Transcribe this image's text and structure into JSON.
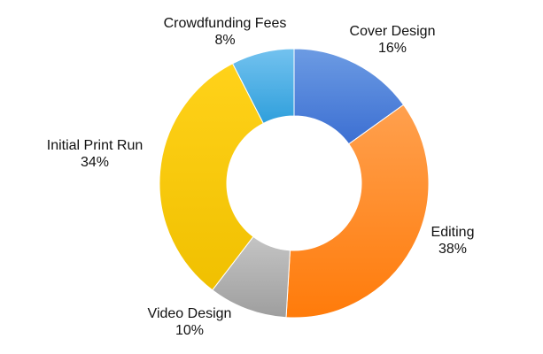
{
  "chart_data": {
    "type": "pie",
    "variant": "donut",
    "start_angle_deg": 0,
    "direction": "clockwise",
    "legend": "none",
    "slices": [
      {
        "label": "Cover Design",
        "value": 16,
        "value_label": "16%",
        "color_light": "#6c9be3",
        "color_dark": "#3c6fd2"
      },
      {
        "label": "Editing",
        "value": 38,
        "value_label": "38%",
        "color_light": "#ffa04e",
        "color_dark": "#ff7b0a"
      },
      {
        "label": "Video Design",
        "value": 10,
        "value_label": "10%",
        "color_light": "#c4c4c4",
        "color_dark": "#9e9e9e"
      },
      {
        "label": "Initial Print Run",
        "value": 34,
        "value_label": "34%",
        "color_light": "#ffd21a",
        "color_dark": "#f0c000"
      },
      {
        "label": "Crowdfunding Fees",
        "value": 8,
        "value_label": "8%",
        "color_light": "#73c2ef",
        "color_dark": "#2f9fdc"
      }
    ]
  }
}
